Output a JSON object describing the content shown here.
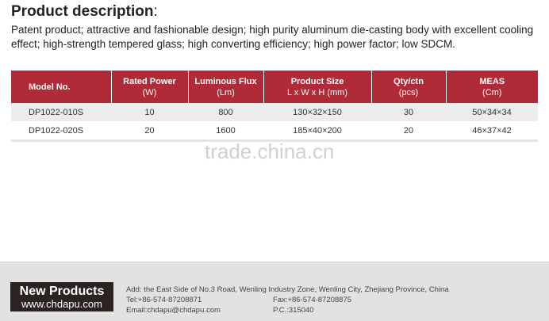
{
  "heading": {
    "title": "Product description",
    "colon": ":"
  },
  "description": "Patent product; attractive and fashionable design; high purity aluminum die-casting body with excellent cooling effect; high-strength tempered glass; high converting efficiency; high power factor; low SDCM.",
  "table": {
    "headers": [
      {
        "label": "Model No.",
        "unit": ""
      },
      {
        "label": "Rated Power",
        "unit": "(W)"
      },
      {
        "label": "Luminous Flux",
        "unit": "(Lm)"
      },
      {
        "label": "Product Size",
        "unit": "L x W x H (mm)"
      },
      {
        "label": "Qty/ctn",
        "unit": "(pcs)"
      },
      {
        "label": "MEAS",
        "unit": "(Cm)"
      }
    ],
    "rows": [
      [
        "DP1022-010S",
        "10",
        "800",
        "130×32×150",
        "30",
        "50×34×34"
      ],
      [
        "DP1022-020S",
        "20",
        "1600",
        "185×40×200",
        "20",
        "46×37×42"
      ]
    ]
  },
  "watermark": "trade.china.cn",
  "footer": {
    "logo_title": "New Products",
    "logo_url": "www.chdapu.com",
    "address": "Add: the East Side of No.3 Road, Wenling Industry Zone, Wenling City, Zhejiang Province, China",
    "tel": "Tel:+86-574-87208871",
    "fax": "Fax:+86-574-87208875",
    "email": "Email:chdapu@chdapu.com",
    "pc": "P.C.:315040"
  },
  "colors": {
    "header_bg": "#b12a38",
    "footer_bg": "#e2e2e2"
  }
}
